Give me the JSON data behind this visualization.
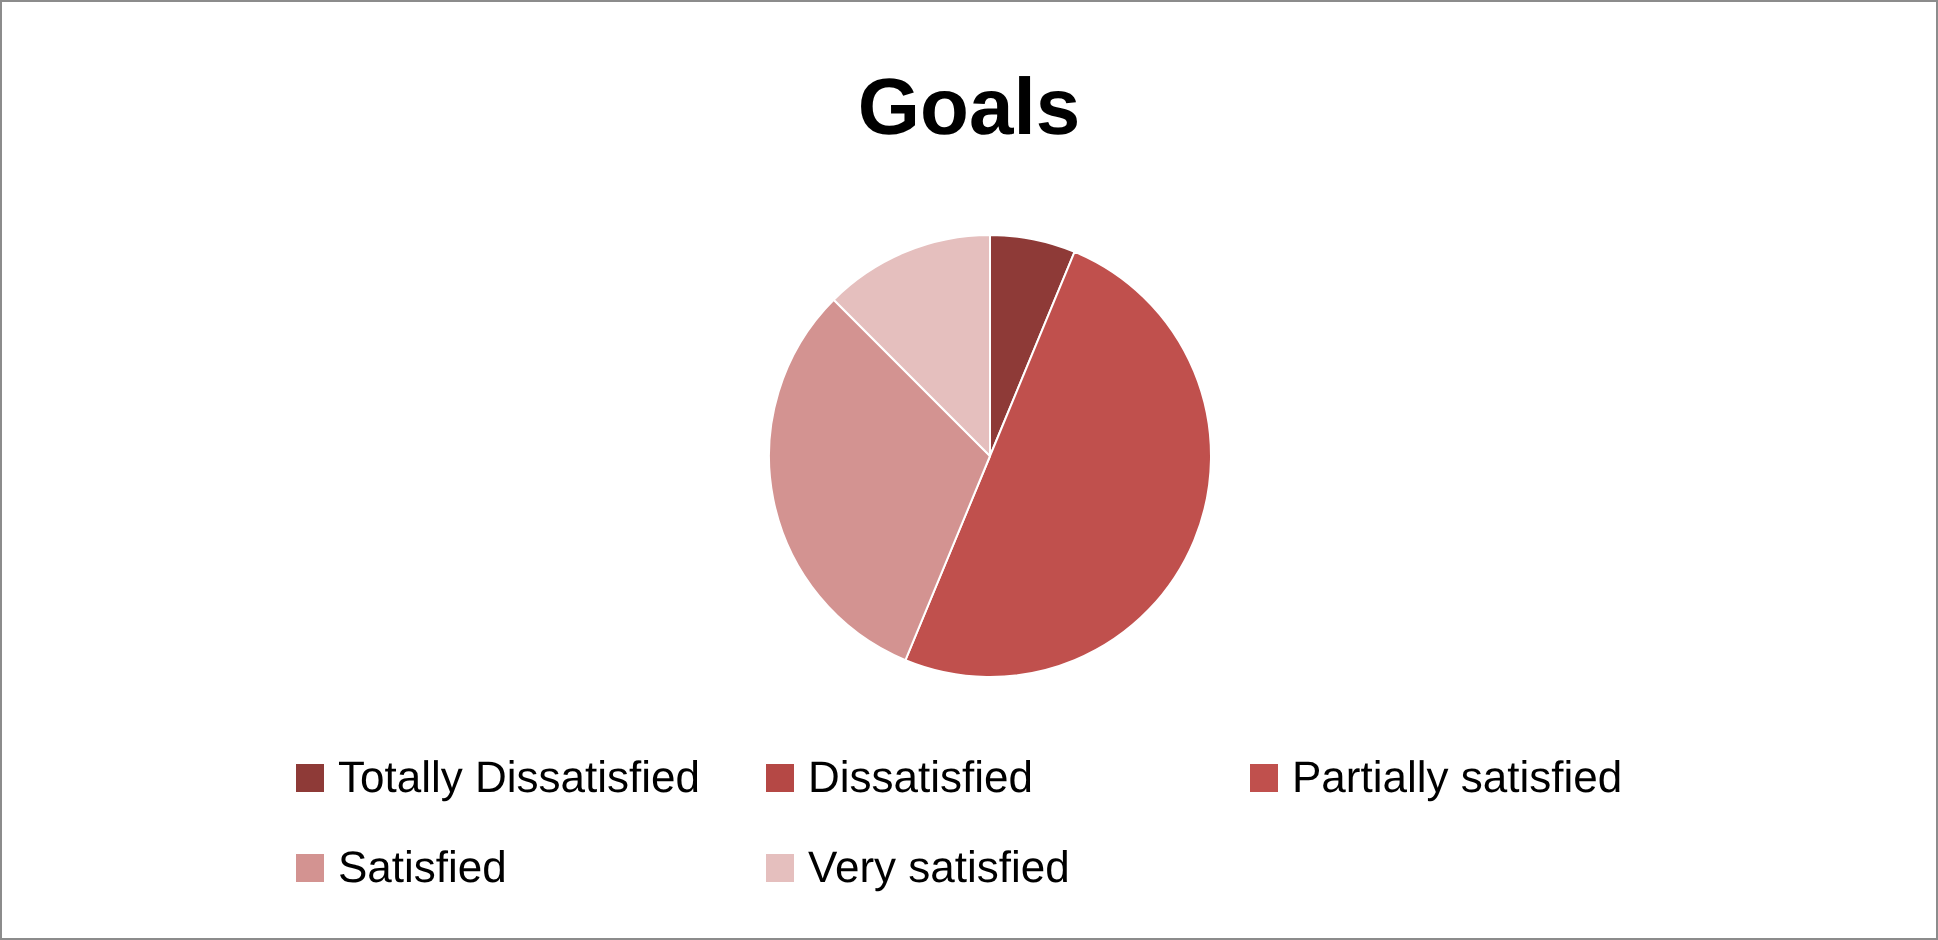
{
  "chart_data": {
    "type": "pie",
    "title": "Goals",
    "categories": [
      "Totally Dissatisfied",
      "Dissatisfied",
      "Partially satisfied",
      "Satisfied",
      "Very satisfied"
    ],
    "values": [
      6.25,
      0,
      50,
      31.25,
      12.5
    ],
    "colors": [
      "#8e3a37",
      "#b54845",
      "#c0504d",
      "#d39391",
      "#e5bfbe"
    ],
    "legend": "bottom"
  }
}
